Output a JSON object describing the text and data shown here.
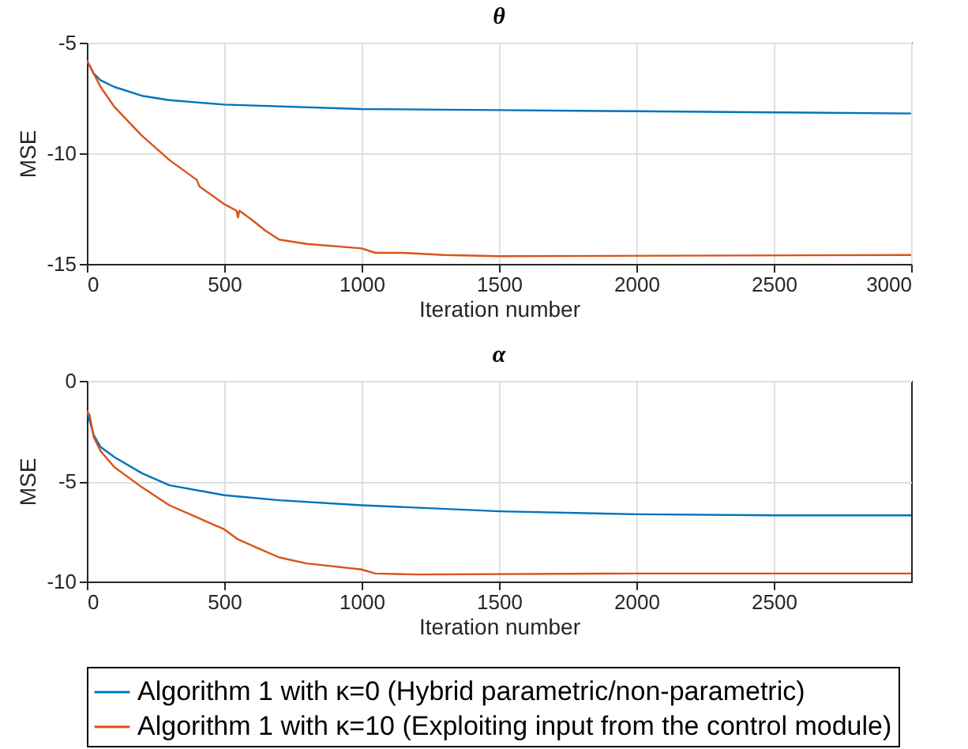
{
  "chart_data": [
    {
      "type": "line",
      "title": "θ",
      "xlabel": "Iteration number",
      "ylabel": "MSE",
      "xlim": [
        0,
        3000
      ],
      "xticks": [
        0,
        500,
        1000,
        1500,
        2000,
        2500,
        3000
      ],
      "ylim": [
        -15,
        -5
      ],
      "yticks": [
        -15,
        -10,
        -5
      ],
      "grid": true,
      "legend": false,
      "series": [
        {
          "color": "#0072bd",
          "x": [
            0,
            25,
            50,
            100,
            200,
            300,
            500,
            1000,
            1500,
            2000,
            2500,
            3000
          ],
          "values": [
            -5.8,
            -6.4,
            -6.7,
            -7.0,
            -7.4,
            -7.6,
            -7.8,
            -8.0,
            -8.05,
            -8.1,
            -8.15,
            -8.2
          ]
        },
        {
          "color": "#d95319",
          "x": [
            0,
            50,
            100,
            200,
            300,
            400,
            410,
            500,
            545,
            550,
            555,
            600,
            650,
            700,
            800,
            1000,
            1050,
            1150,
            1300,
            1500,
            3000
          ],
          "values": [
            -5.8,
            -7.0,
            -7.9,
            -9.2,
            -10.3,
            -11.2,
            -11.5,
            -12.3,
            -12.6,
            -12.9,
            -12.6,
            -13.0,
            -13.5,
            -13.9,
            -14.1,
            -14.3,
            -14.5,
            -14.5,
            -14.6,
            -14.65,
            -14.6
          ]
        }
      ]
    },
    {
      "type": "line",
      "title": "α",
      "xlabel": "Iteration number",
      "ylabel": "MSE",
      "xlim": [
        0,
        3000
      ],
      "xticks": [
        0,
        500,
        1000,
        1500,
        2000,
        2500
      ],
      "ylim": [
        -10,
        0
      ],
      "yticks": [
        -10,
        -5,
        0
      ],
      "grid": true,
      "legend": "bottom",
      "series": [
        {
          "name": "Algorithm 1 with κ=0 (Hybrid parametric/non-parametric)",
          "color": "#0072bd",
          "x": [
            0,
            25,
            50,
            100,
            200,
            300,
            500,
            700,
            1000,
            1500,
            2000,
            2500,
            3000
          ],
          "values": [
            -1.5,
            -2.7,
            -3.3,
            -3.8,
            -4.6,
            -5.2,
            -5.7,
            -5.95,
            -6.2,
            -6.5,
            -6.65,
            -6.7,
            -6.7
          ]
        },
        {
          "name": "Algorithm 1 with κ=10 (Exploiting input from the control module)",
          "color": "#d95319",
          "x": [
            0,
            10,
            25,
            50,
            100,
            200,
            300,
            400,
            450,
            500,
            550,
            600,
            700,
            800,
            1000,
            1050,
            1200,
            2000,
            3000
          ],
          "values": [
            -1.5,
            -1.7,
            -2.8,
            -3.5,
            -4.3,
            -5.3,
            -6.2,
            -6.8,
            -7.1,
            -7.4,
            -7.9,
            -8.2,
            -8.8,
            -9.1,
            -9.4,
            -9.6,
            -9.65,
            -9.6,
            -9.6
          ]
        }
      ]
    }
  ]
}
